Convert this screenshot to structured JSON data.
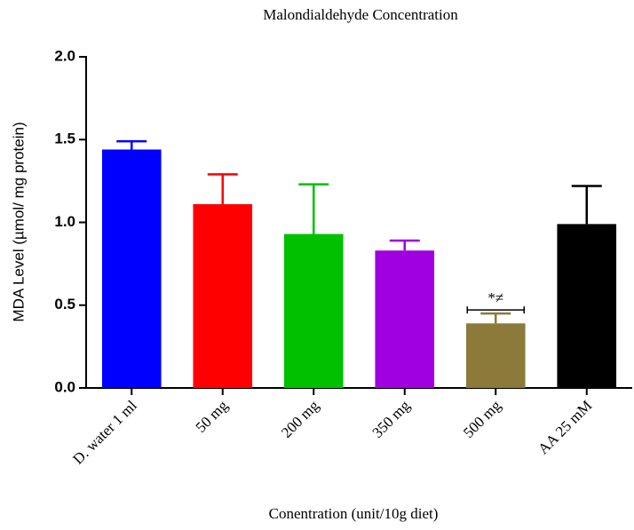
{
  "chart_data": {
    "type": "bar",
    "title": "Malondialdehyde Concentration",
    "x_label": "Conentration  (unit/10g diet)",
    "y_label": "MDA Level (µmol/ mg protein)",
    "categories": [
      "D. water 1 ml",
      "50 mg",
      "200 mg",
      "350 mg",
      "500 mg",
      "AA 25 mM"
    ],
    "values": [
      1.44,
      1.11,
      0.93,
      0.83,
      0.39,
      0.99
    ],
    "errors": [
      0.05,
      0.18,
      0.3,
      0.06,
      0.06,
      0.23
    ],
    "colors": [
      "#0000ff",
      "#ff0000",
      "#00c000",
      "#a000e0",
      "#8b7a3a",
      "#000000"
    ],
    "annotations": [
      {
        "index": 4,
        "text": "*≠"
      }
    ],
    "ylim": [
      0,
      2
    ],
    "yticks": [
      {
        "value": 0,
        "label": "0.0"
      },
      0.5,
      {
        "value": 1,
        "label": "1.0"
      },
      1.5,
      {
        "value": 2,
        "label": "2.0"
      }
    ]
  }
}
